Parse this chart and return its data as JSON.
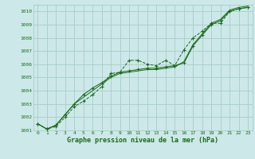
{
  "xlabel": "Graphe pression niveau de la mer (hPa)",
  "bg_color": "#cce8e8",
  "grid_color": "#aacccc",
  "line_color": "#1a6b1a",
  "marker_color": "#1a6b1a",
  "ylim": [
    1001.0,
    1010.5
  ],
  "xlim": [
    -0.5,
    23.5
  ],
  "yticks": [
    1001,
    1002,
    1003,
    1004,
    1005,
    1006,
    1007,
    1008,
    1009,
    1010
  ],
  "xticks": [
    0,
    1,
    2,
    3,
    4,
    5,
    6,
    7,
    8,
    9,
    10,
    11,
    12,
    13,
    14,
    15,
    16,
    17,
    18,
    19,
    20,
    21,
    22,
    23
  ],
  "series1": [
    1001.5,
    1001.1,
    1001.3,
    1002.0,
    1002.8,
    1003.2,
    1003.7,
    1004.3,
    1005.3,
    1005.4,
    1006.3,
    1006.3,
    1006.0,
    1005.9,
    1006.3,
    1005.9,
    1007.1,
    1008.0,
    1008.5,
    1009.1,
    1009.1,
    1010.0,
    1010.2,
    1010.3
  ],
  "series2": [
    1001.5,
    1001.1,
    1001.4,
    1002.2,
    1003.0,
    1003.5,
    1004.0,
    1004.5,
    1005.0,
    1005.3,
    1005.4,
    1005.5,
    1005.6,
    1005.6,
    1005.7,
    1005.8,
    1006.2,
    1007.5,
    1008.3,
    1009.1,
    1009.4,
    1010.1,
    1010.3,
    1010.4
  ],
  "series3": [
    1001.5,
    1001.1,
    1001.4,
    1002.2,
    1003.0,
    1003.7,
    1004.2,
    1004.6,
    1005.1,
    1005.4,
    1005.5,
    1005.6,
    1005.7,
    1005.7,
    1005.8,
    1005.9,
    1006.1,
    1007.4,
    1008.2,
    1009.0,
    1009.3,
    1010.0,
    1010.2,
    1010.3
  ],
  "series4": [
    1001.5,
    1001.1,
    1001.4,
    1002.2,
    1003.0,
    1003.7,
    1004.2,
    1004.6,
    1005.1,
    1005.4,
    1005.5,
    1005.6,
    1005.7,
    1005.7,
    1005.8,
    1005.9,
    1006.1,
    1007.4,
    1008.2,
    1009.0,
    1009.3,
    1010.0,
    1010.2,
    1010.3
  ]
}
